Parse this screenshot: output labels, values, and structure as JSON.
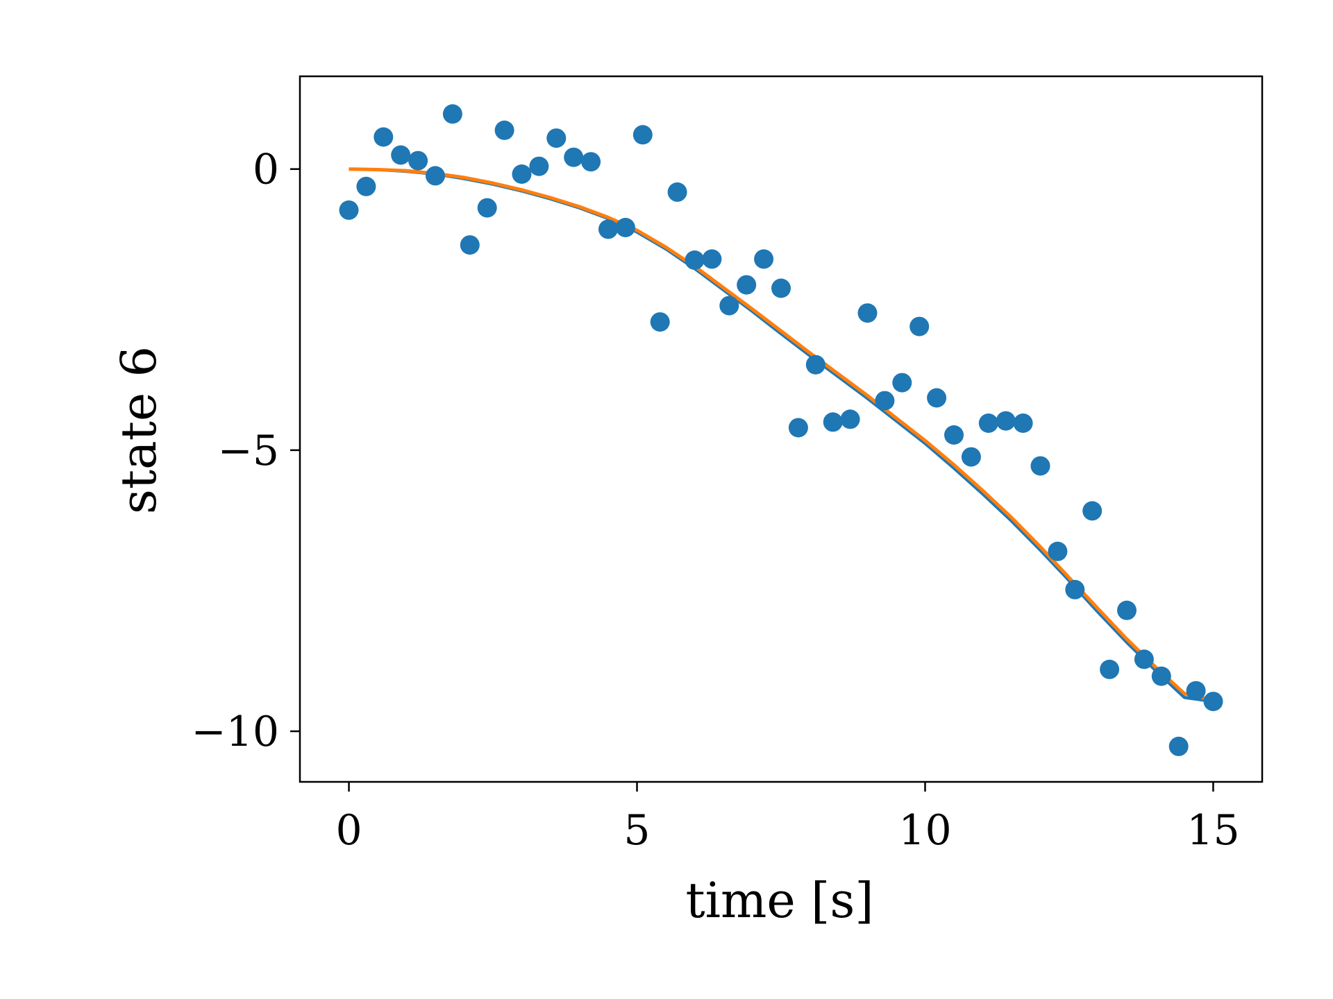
{
  "chart_data": {
    "type": "scatter",
    "xlabel": "time [s]",
    "ylabel": "state 6",
    "xlim": [
      -0.85,
      15.85
    ],
    "ylim": [
      -10.9,
      1.65
    ],
    "xticks": [
      0,
      5,
      10,
      15
    ],
    "xtick_labels": [
      "0",
      "5",
      "10",
      "15"
    ],
    "yticks": [
      0,
      -5,
      -10
    ],
    "ytick_labels": [
      "0",
      "−5",
      "−10"
    ],
    "grid": false,
    "legend": "none",
    "colors": {
      "points": "#1f77b4",
      "line_a": "#1f77b4",
      "line_b": "#ff7f0e"
    },
    "points": {
      "x": [
        0,
        0.3,
        0.6,
        0.9,
        1.2,
        1.5,
        1.8,
        2.1,
        2.4,
        2.7,
        3.0,
        3.3,
        3.6,
        3.9,
        4.2,
        4.5,
        4.8,
        5.1,
        5.4,
        5.7,
        6.0,
        6.3,
        6.6,
        6.9,
        7.2,
        7.5,
        7.8,
        8.1,
        8.4,
        8.7,
        9.0,
        9.3,
        9.6,
        9.9,
        10.2,
        10.5,
        10.8,
        11.1,
        11.4,
        11.7,
        12.0,
        12.3,
        12.6,
        12.9,
        13.2,
        13.5,
        13.8,
        14.1,
        14.4,
        14.7,
        15.0
      ],
      "y": [
        -0.73,
        -0.31,
        0.57,
        0.25,
        0.15,
        -0.12,
        0.98,
        -1.35,
        -0.69,
        0.69,
        -0.09,
        0.05,
        0.55,
        0.21,
        0.13,
        -1.07,
        -1.04,
        0.61,
        -2.72,
        -0.41,
        -1.62,
        -1.6,
        -2.43,
        -2.06,
        -1.6,
        -2.12,
        -4.6,
        -3.48,
        -4.5,
        -4.45,
        -2.56,
        -4.12,
        -3.8,
        -2.8,
        -4.07,
        -4.73,
        -5.12,
        -4.52,
        -4.48,
        -4.52,
        -5.28,
        -6.8,
        -7.48,
        -6.08,
        -8.9,
        -7.85,
        -8.72,
        -9.02,
        -10.27,
        -9.28,
        -9.47
      ]
    },
    "fit_lines": [
      {
        "x": [
          0,
          0.5,
          1,
          1.5,
          2,
          2.5,
          3,
          3.5,
          4,
          4.5,
          5,
          5.5,
          6,
          6.5,
          7,
          7.5,
          8,
          8.5,
          9,
          9.5,
          10,
          10.5,
          11,
          11.5,
          12,
          12.5,
          13,
          13.5,
          14,
          14.5,
          15
        ],
        "y": [
          0,
          -0.01,
          -0.04,
          -0.09,
          -0.17,
          -0.27,
          -0.39,
          -0.53,
          -0.69,
          -0.88,
          -1.12,
          -1.42,
          -1.77,
          -2.15,
          -2.53,
          -2.93,
          -3.32,
          -3.7,
          -4.08,
          -4.48,
          -4.88,
          -5.32,
          -5.78,
          -6.26,
          -6.78,
          -7.32,
          -7.88,
          -8.42,
          -8.92,
          -9.4,
          -9.47
        ]
      },
      {
        "x": [
          0,
          0.5,
          1,
          1.5,
          2,
          2.5,
          3,
          3.5,
          4,
          4.5,
          5,
          5.5,
          6,
          6.5,
          7,
          7.5,
          8,
          8.5,
          9,
          9.5,
          10,
          10.5,
          11,
          11.5,
          12,
          12.5,
          13,
          13.5,
          14,
          14.5,
          15
        ],
        "y": [
          0,
          -0.01,
          -0.03,
          -0.08,
          -0.15,
          -0.25,
          -0.37,
          -0.51,
          -0.67,
          -0.86,
          -1.09,
          -1.39,
          -1.73,
          -2.11,
          -2.49,
          -2.88,
          -3.27,
          -3.65,
          -4.03,
          -4.43,
          -4.83,
          -5.26,
          -5.72,
          -6.2,
          -6.72,
          -7.27,
          -7.82,
          -8.36,
          -8.86,
          -9.33,
          -9.45
        ]
      }
    ]
  }
}
